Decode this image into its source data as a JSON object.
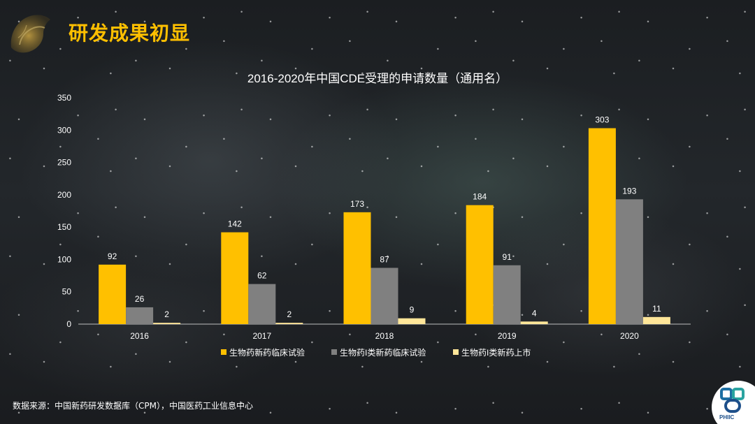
{
  "page": {
    "title": "研发成果初显",
    "source": "数据来源：中国新药研发数据库（CPM），中国医药工业信息中心",
    "logo_text": "PHIIC"
  },
  "chart_data": {
    "type": "bar",
    "title": "2016-2020年中国CDE受理的申请数量（通用名）",
    "xlabel": "",
    "ylabel": "",
    "categories": [
      "2016",
      "2017",
      "2018",
      "2019",
      "2020"
    ],
    "ylim": [
      0,
      350
    ],
    "yticks": [
      0,
      50,
      100,
      150,
      200,
      250,
      300,
      350
    ],
    "grid": false,
    "legend_position": "bottom",
    "series": [
      {
        "name": "生物药新药临床试验",
        "values": [
          92,
          142,
          173,
          184,
          303
        ],
        "color": "#ffc000"
      },
      {
        "name": "生物药I类新药临床试验",
        "values": [
          26,
          62,
          87,
          91,
          193
        ],
        "color": "#808080"
      },
      {
        "name": "生物药I类新药上市",
        "values": [
          2,
          2,
          9,
          4,
          11
        ],
        "color": "#ffe699"
      }
    ],
    "axis_color": "#bfbfbf",
    "label_color": "#ffffff"
  }
}
